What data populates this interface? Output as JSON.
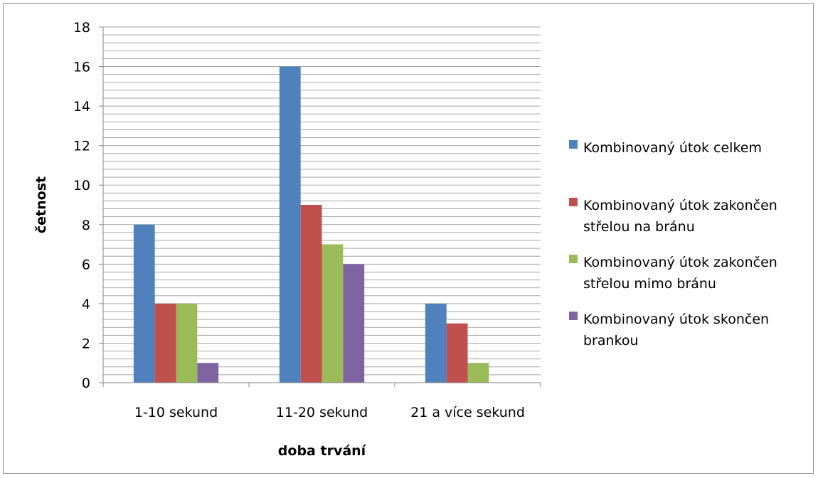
{
  "chart_data": {
    "type": "bar",
    "categories": [
      "1-10 sekund",
      "11-20 sekund",
      "21 a více sekund"
    ],
    "series": [
      {
        "name": "Kombinovaný útok celkem",
        "values": [
          8,
          16,
          4
        ],
        "color": "#4f81bd"
      },
      {
        "name": "Kombinovaný útok zakončen střelou na bránu",
        "values": [
          4,
          9,
          3
        ],
        "color": "#c0504d"
      },
      {
        "name": "Kombinovaný útok zakončen střelou mimo bránu",
        "values": [
          4,
          7,
          1
        ],
        "color": "#9bbb59"
      },
      {
        "name": "Kombinovaný útok skončen brankou",
        "values": [
          1,
          6,
          0
        ],
        "color": "#8064a2"
      }
    ],
    "legend_lines": [
      [
        "Kombinovaný útok celkem"
      ],
      [
        "Kombinovaný útok zakončen",
        "střelou na bránu"
      ],
      [
        "Kombinovaný útok zakončen",
        "střelou mimo bránu"
      ],
      [
        "Kombinovaný útok skončen",
        "brankou"
      ]
    ],
    "xlabel": "doba trvání",
    "ylabel": "četnost",
    "ylim": [
      0,
      18
    ],
    "yticks": [
      0,
      2,
      4,
      6,
      8,
      10,
      12,
      14,
      16,
      18
    ],
    "minor_grid_step": 0.4,
    "grid": true,
    "legend_position": "right"
  }
}
